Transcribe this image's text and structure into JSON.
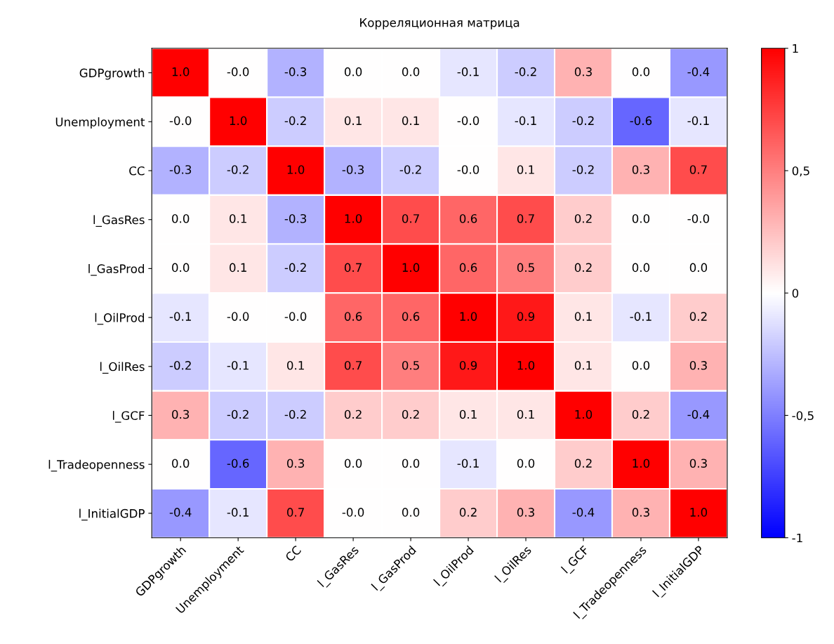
{
  "chart_data": {
    "type": "heatmap",
    "title": "Корреляционная матрица",
    "categories": [
      "GDPgrowth",
      "Unemployment",
      "CC",
      "l_GasRes",
      "l_GasProd",
      "l_OilProd",
      "l_OilRes",
      "l_GCF",
      "l_Tradeopenness",
      "l_InitialGDP"
    ],
    "y_categories": [
      "GDPgrowth",
      "Unemployment",
      "CC",
      "l_GasRes",
      "l_GasProd",
      "l_OilProd",
      "l_OilRes",
      "l_GCF",
      "l_Tradeopenness",
      "l_InitialGDP"
    ],
    "cells": [
      [
        1.0,
        0.0,
        -0.3,
        0.0,
        0.0,
        -0.1,
        -0.2,
        0.3,
        0.0,
        -0.4
      ],
      [
        0.0,
        1.0,
        -0.2,
        0.1,
        0.1,
        0.0,
        -0.1,
        -0.2,
        -0.6,
        -0.1
      ],
      [
        -0.3,
        -0.2,
        1.0,
        -0.3,
        -0.2,
        0.0,
        0.1,
        -0.2,
        0.3,
        0.7
      ],
      [
        0.0,
        0.1,
        -0.3,
        1.0,
        0.7,
        0.6,
        0.7,
        0.2,
        0.0,
        0.0
      ],
      [
        0.0,
        0.1,
        -0.2,
        0.7,
        1.0,
        0.6,
        0.5,
        0.2,
        0.0,
        0.0
      ],
      [
        -0.1,
        0.0,
        0.0,
        0.6,
        0.6,
        1.0,
        0.9,
        0.1,
        -0.1,
        0.2
      ],
      [
        -0.2,
        -0.1,
        0.1,
        0.7,
        0.5,
        0.9,
        1.0,
        0.1,
        0.0,
        0.3
      ],
      [
        0.3,
        -0.2,
        -0.2,
        0.2,
        0.2,
        0.1,
        0.1,
        1.0,
        0.2,
        -0.4
      ],
      [
        0.0,
        -0.6,
        0.3,
        0.0,
        0.0,
        -0.1,
        0.0,
        0.2,
        1.0,
        0.3
      ],
      [
        -0.4,
        -0.1,
        0.7,
        0.0,
        0.0,
        0.2,
        0.3,
        -0.4,
        0.3,
        1.0
      ]
    ],
    "cell_labels": [
      [
        "1.0",
        "-0.0",
        "-0.3",
        "0.0",
        "0.0",
        "-0.1",
        "-0.2",
        "0.3",
        "0.0",
        "-0.4"
      ],
      [
        "-0.0",
        "1.0",
        "-0.2",
        "0.1",
        "0.1",
        "-0.0",
        "-0.1",
        "-0.2",
        "-0.6",
        "-0.1"
      ],
      [
        "-0.3",
        "-0.2",
        "1.0",
        "-0.3",
        "-0.2",
        "-0.0",
        "0.1",
        "-0.2",
        "0.3",
        "0.7"
      ],
      [
        "0.0",
        "0.1",
        "-0.3",
        "1.0",
        "0.7",
        "0.6",
        "0.7",
        "0.2",
        "0.0",
        "-0.0"
      ],
      [
        "0.0",
        "0.1",
        "-0.2",
        "0.7",
        "1.0",
        "0.6",
        "0.5",
        "0.2",
        "0.0",
        "0.0"
      ],
      [
        "-0.1",
        "-0.0",
        "-0.0",
        "0.6",
        "0.6",
        "1.0",
        "0.9",
        "0.1",
        "-0.1",
        "0.2"
      ],
      [
        "-0.2",
        "-0.1",
        "0.1",
        "0.7",
        "0.5",
        "0.9",
        "1.0",
        "0.1",
        "0.0",
        "0.3"
      ],
      [
        "0.3",
        "-0.2",
        "-0.2",
        "0.2",
        "0.2",
        "0.1",
        "0.1",
        "1.0",
        "0.2",
        "-0.4"
      ],
      [
        "0.0",
        "-0.6",
        "0.3",
        "0.0",
        "0.0",
        "-0.1",
        "0.0",
        "0.2",
        "1.0",
        "0.3"
      ],
      [
        "-0.4",
        "-0.1",
        "0.7",
        "-0.0",
        "0.0",
        "0.2",
        "0.3",
        "-0.4",
        "0.3",
        "1.0"
      ]
    ],
    "clim": [
      -1,
      1
    ],
    "cticks": [
      {
        "value": -1,
        "label": "-1"
      },
      {
        "value": -0.5,
        "label": "-0,5"
      },
      {
        "value": 0,
        "label": "0"
      },
      {
        "value": 0.5,
        "label": "0,5"
      },
      {
        "value": 1,
        "label": "1"
      }
    ]
  }
}
